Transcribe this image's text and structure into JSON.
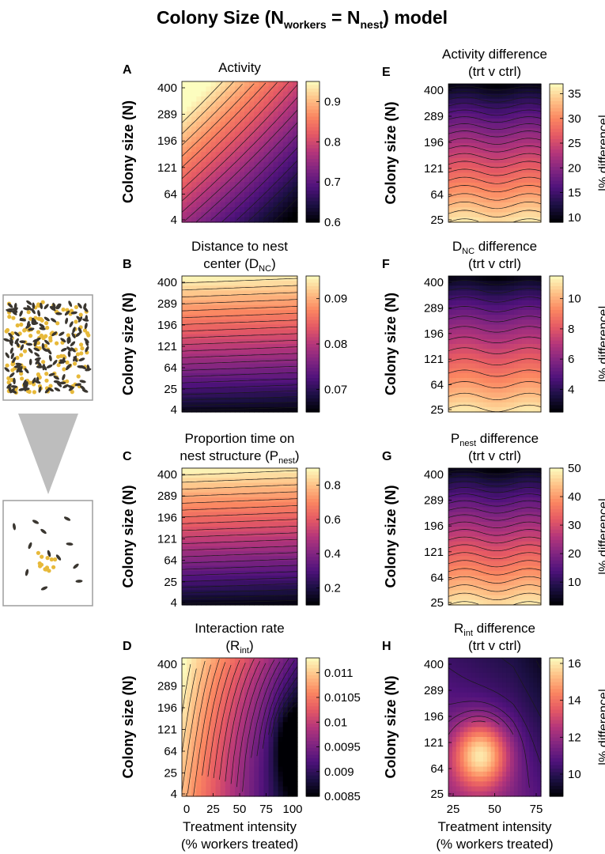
{
  "figure": {
    "title_parts": {
      "pre": "Colony Size (N",
      "sub1": "workers",
      "mid": " = N",
      "sub2": "nest",
      "post": ") model"
    }
  },
  "chart_data": [
    {
      "panel": "A",
      "type": "heatmap",
      "title_lines": [
        {
          "text": "Activity"
        }
      ],
      "ylabel": "Colony size (N)",
      "y_ticks": [
        "4",
        "64",
        "121",
        "196",
        "289",
        "400"
      ],
      "x_ticks": [],
      "xlabel_lines": [],
      "x_range": [
        0,
        100
      ],
      "y_range": [
        4,
        400
      ],
      "z_range": [
        0.6,
        0.95
      ],
      "colorbar_ticks": [
        "0.9",
        "0.8",
        "0.7",
        "0.6"
      ],
      "colorbar_label": "",
      "pattern": "diagonal",
      "contour_levels": 18
    },
    {
      "panel": "B",
      "type": "heatmap",
      "title_lines": [
        {
          "text": "Distance to nest"
        },
        {
          "text": "center (D",
          "sub": "NC",
          "post": ")"
        }
      ],
      "ylabel": "Colony size (N)",
      "y_ticks": [
        "4",
        "25",
        "64",
        "121",
        "196",
        "289",
        "400"
      ],
      "x_ticks": [],
      "xlabel_lines": [],
      "x_range": [
        0,
        100
      ],
      "y_range": [
        4,
        400
      ],
      "z_range": [
        0.065,
        0.095
      ],
      "colorbar_ticks": [
        "0.09",
        "0.08",
        "0.07"
      ],
      "colorbar_label": "",
      "pattern": "horizontal",
      "contour_levels": 22
    },
    {
      "panel": "C",
      "type": "heatmap",
      "title_lines": [
        {
          "text": "Proportion time on"
        },
        {
          "text": "nest structure (P",
          "sub": "nest",
          "post": ")"
        }
      ],
      "ylabel": "Colony size (N)",
      "y_ticks": [
        "4",
        "25",
        "64",
        "121",
        "196",
        "289",
        "400"
      ],
      "x_ticks": [],
      "xlabel_lines": [],
      "x_range": [
        0,
        100
      ],
      "y_range": [
        4,
        400
      ],
      "z_range": [
        0.1,
        0.9
      ],
      "colorbar_ticks": [
        "0.8",
        "0.6",
        "0.4",
        "0.2"
      ],
      "colorbar_label": "",
      "pattern": "horizontal",
      "contour_levels": 22
    },
    {
      "panel": "D",
      "type": "heatmap",
      "title_lines": [
        {
          "text": "Interaction rate"
        },
        {
          "text": "(R",
          "sub": "int",
          "post": ")"
        }
      ],
      "ylabel": "Colony size (N)",
      "y_ticks": [
        "4",
        "25",
        "64",
        "121",
        "196",
        "289",
        "400"
      ],
      "x_ticks": [
        "0",
        "25",
        "50",
        "75",
        "100"
      ],
      "xlabel_lines": [
        "Treatment intensity",
        "(% workers treated)"
      ],
      "x_range": [
        0,
        100
      ],
      "y_range": [
        4,
        400
      ],
      "z_range": [
        0.0085,
        0.0113
      ],
      "colorbar_ticks": [
        "0.011",
        "0.0105",
        "0.01",
        "0.0095",
        "0.009",
        "0.0085"
      ],
      "colorbar_label": "",
      "pattern": "vertical",
      "contour_levels": 22
    },
    {
      "panel": "E",
      "type": "heatmap",
      "title_lines": [
        {
          "text": "Activity difference"
        },
        {
          "text": "(trt v ctrl)"
        }
      ],
      "ylabel": "Colony size (N)",
      "y_ticks": [
        "25",
        "64",
        "121",
        "196",
        "289",
        "400"
      ],
      "x_ticks": [],
      "xlabel_lines": [],
      "x_range": [
        25,
        75
      ],
      "y_range": [
        25,
        400
      ],
      "z_range": [
        9,
        37
      ],
      "colorbar_ticks": [
        "35",
        "30",
        "25",
        "20",
        "15",
        "10"
      ],
      "colorbar_label": "|% difference|",
      "pattern": "inv-horizontal",
      "contour_levels": 20
    },
    {
      "panel": "F",
      "type": "heatmap",
      "title_lines": [
        {
          "text": "D",
          "sub": "NC",
          "post": " difference"
        },
        {
          "text": "(trt v ctrl)"
        }
      ],
      "ylabel": "Colony size (N)",
      "y_ticks": [
        "25",
        "64",
        "121",
        "196",
        "289",
        "400"
      ],
      "x_ticks": [],
      "xlabel_lines": [],
      "x_range": [
        25,
        75
      ],
      "y_range": [
        25,
        400
      ],
      "z_range": [
        2.5,
        11.5
      ],
      "colorbar_ticks": [
        "10",
        "8",
        "6",
        "4"
      ],
      "colorbar_label": "|% difference|",
      "pattern": "inv-horizontal",
      "contour_levels": 14
    },
    {
      "panel": "G",
      "type": "heatmap",
      "title_lines": [
        {
          "text": "P",
          "sub": "nest",
          "post": " difference"
        },
        {
          "text": "(trt v ctrl)"
        }
      ],
      "ylabel": "Colony size (N)",
      "y_ticks": [
        "25",
        "64",
        "121",
        "196",
        "289",
        "400"
      ],
      "x_ticks": [],
      "xlabel_lines": [],
      "x_range": [
        25,
        75
      ],
      "y_range": [
        25,
        400
      ],
      "z_range": [
        2,
        50
      ],
      "colorbar_ticks": [
        "50",
        "40",
        "30",
        "20",
        "10"
      ],
      "colorbar_label": "|% difference|",
      "pattern": "inv-horizontal",
      "contour_levels": 20
    },
    {
      "panel": "H",
      "type": "heatmap",
      "title_lines": [
        {
          "text": "R",
          "sub": "int",
          "post": " difference"
        },
        {
          "text": "(trt v ctrl)"
        }
      ],
      "ylabel": "Colony size (N)",
      "y_ticks": [
        "25",
        "64",
        "121",
        "196",
        "289",
        "400"
      ],
      "x_ticks": [
        "25",
        "50",
        "75"
      ],
      "xlabel_lines": [
        "Treatment intensity",
        "(% workers treated)"
      ],
      "x_range": [
        25,
        75
      ],
      "y_range": [
        25,
        400
      ],
      "z_range": [
        8.8,
        16.3
      ],
      "colorbar_ticks": [
        "16",
        "14",
        "12",
        "10"
      ],
      "colorbar_label": "|% difference|",
      "pattern": "blob",
      "contour_levels": 14
    }
  ],
  "colors": {
    "colormap": [
      "#000004",
      "#1c1044",
      "#4f127b",
      "#812581",
      "#b5367a",
      "#e55964",
      "#fb8761",
      "#fec287",
      "#fcfdbf"
    ],
    "contour": "#1a1a1a",
    "arrow": "#bdbdbd",
    "box_stroke": "#9e9e9e",
    "bee": "#3a3630",
    "cell": "#e7b93a"
  }
}
